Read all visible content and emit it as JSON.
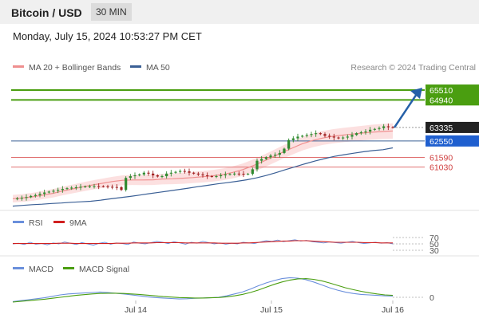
{
  "header": {
    "pair": "Bitcoin / USD",
    "timeframe": "30 MIN"
  },
  "timestamp": "Monday, July 15, 2024 10:53:27 PM CET",
  "legend": {
    "ma_bb": "MA 20 + Bollinger Bands",
    "ma50": "MA 50",
    "credit": "Research © 2024 Trading Central"
  },
  "rsi_legend": {
    "rsi": "RSI",
    "ma9": "9MA"
  },
  "macd_legend": {
    "macd": "MACD",
    "signal": "MACD Signal"
  },
  "colors": {
    "resistance": "#4a9e10",
    "support": "#e07070",
    "pivot": "#3a5f95",
    "current": "#222222",
    "arrow": "#2560a8",
    "bull": "#2f8a2f",
    "bear": "#a02020"
  },
  "chart_data": [
    {
      "type": "candlestick",
      "title": "Bitcoin / USD",
      "x_ticks": [
        "Jul 14",
        "Jul 15",
        "Jul 16"
      ],
      "ylim": [
        58600,
        66300
      ],
      "levels": [
        {
          "label": "65510",
          "value": 65510,
          "kind": "resistance"
        },
        {
          "label": "64940",
          "value": 64940,
          "kind": "resistance"
        },
        {
          "label": "63335",
          "value": 63335,
          "kind": "current"
        },
        {
          "label": "62550",
          "value": 62550,
          "kind": "pivot"
        },
        {
          "label": "61590",
          "value": 61590,
          "kind": "support"
        },
        {
          "label": "61030",
          "value": 61030,
          "kind": "support"
        }
      ],
      "close_path": [
        59190,
        59200,
        59240,
        59280,
        59350,
        59400,
        59470,
        59550,
        59600,
        59650,
        59700,
        59760,
        59800,
        59830,
        59850,
        59880,
        59900,
        59910,
        59920,
        59915,
        59900,
        59880,
        59870,
        59860,
        59700,
        60400,
        60500,
        60550,
        60600,
        60700,
        60650,
        60550,
        60480,
        60500,
        60650,
        60700,
        60750,
        60800,
        60780,
        60700,
        60650,
        60600,
        60550,
        60500,
        60480,
        60500,
        60550,
        60600,
        60620,
        60650,
        60640,
        60620,
        60630,
        60900,
        61400,
        61500,
        61600,
        61700,
        61750,
        61850,
        62100,
        62600,
        62700,
        62800,
        62850,
        62900,
        62950,
        63000,
        62950,
        62850,
        62800,
        62750,
        62700,
        62750,
        62800,
        62900,
        63000,
        63050,
        63100,
        63200,
        63250,
        63300,
        63400,
        63350,
        63335
      ],
      "ma20_path": [
        59190,
        59230,
        59300,
        59400,
        59500,
        59640,
        59760,
        59880,
        59990,
        60090,
        60190,
        60260,
        60280,
        60280,
        60290,
        60330,
        60350,
        60380,
        60420,
        60470,
        60520,
        60600,
        60720,
        60880,
        61100,
        61350,
        61620,
        61900,
        62150,
        62400,
        62580,
        62720,
        62820,
        62890,
        62950,
        63010,
        63060,
        63100,
        63130
      ],
      "ma50_path": [
        58760,
        58800,
        58840,
        58870,
        58910,
        58940,
        58980,
        59010,
        59040,
        59100,
        59180,
        59250,
        59320,
        59400,
        59480,
        59560,
        59640,
        59720,
        59800,
        59890,
        59970,
        60050,
        60120,
        60200,
        60290,
        60400,
        60540,
        60700,
        60880,
        61050,
        61220,
        61380,
        61520,
        61650,
        61750,
        61840,
        61920,
        61990,
        62040,
        62150
      ]
    },
    {
      "type": "line",
      "title": "RSI",
      "y_ticks": [
        70,
        50,
        30
      ],
      "ylim": [
        30,
        70
      ],
      "series": [
        {
          "name": "RSI",
          "values": [
            50,
            52,
            48,
            55,
            49,
            51,
            47,
            53,
            50,
            56,
            52,
            48,
            54,
            50,
            46,
            52,
            55,
            49,
            53,
            51,
            48,
            56,
            52,
            50,
            54,
            58,
            55,
            51,
            57,
            53,
            49,
            55,
            52,
            58,
            54,
            50,
            53,
            49,
            52,
            50,
            55,
            53,
            51,
            56,
            60,
            58,
            62,
            57,
            60,
            63,
            59,
            61,
            57,
            55,
            53,
            56,
            54,
            52,
            55,
            58,
            54,
            51,
            53,
            55,
            52,
            54,
            50
          ]
        },
        {
          "name": "9MA",
          "values": [
            51,
            51,
            51,
            51,
            51,
            51,
            51,
            51,
            52,
            52,
            52,
            51,
            51,
            51,
            51,
            51,
            51,
            51,
            52,
            52,
            52,
            53,
            53,
            53,
            53,
            54,
            54,
            54,
            54,
            54,
            53,
            53,
            53,
            53,
            53,
            53,
            52,
            52,
            52,
            52,
            53,
            53,
            54,
            55,
            56,
            57,
            58,
            59,
            59,
            60,
            60,
            60,
            59,
            58,
            57,
            56,
            55,
            55,
            55,
            55,
            55,
            54,
            54,
            54,
            53,
            53,
            53
          ]
        }
      ]
    },
    {
      "type": "line",
      "title": "MACD",
      "y_ticks": [
        0
      ],
      "series": [
        {
          "name": "MACD",
          "values": [
            -18,
            -14,
            -10,
            -6,
            -2,
            4,
            10,
            14,
            16,
            18,
            20,
            22,
            20,
            17,
            14,
            10,
            6,
            2,
            -1,
            -3,
            -5,
            -7,
            -6,
            -4,
            -3,
            -2,
            0,
            6,
            14,
            22,
            34,
            48,
            60,
            70,
            78,
            82,
            80,
            74,
            64,
            52,
            40,
            30,
            22,
            16,
            12,
            10,
            8,
            6,
            5
          ]
        },
        {
          "name": "MACD Signal",
          "values": [
            -20,
            -17,
            -14,
            -11,
            -8,
            -4,
            0,
            4,
            8,
            11,
            14,
            16,
            17,
            17,
            16,
            14,
            12,
            9,
            6,
            3,
            1,
            -1,
            -2,
            -3,
            -3,
            -2,
            -1,
            2,
            6,
            12,
            20,
            30,
            42,
            54,
            64,
            72,
            77,
            78,
            75,
            69,
            60,
            50,
            40,
            32,
            25,
            19,
            14,
            10,
            8
          ]
        }
      ]
    }
  ]
}
